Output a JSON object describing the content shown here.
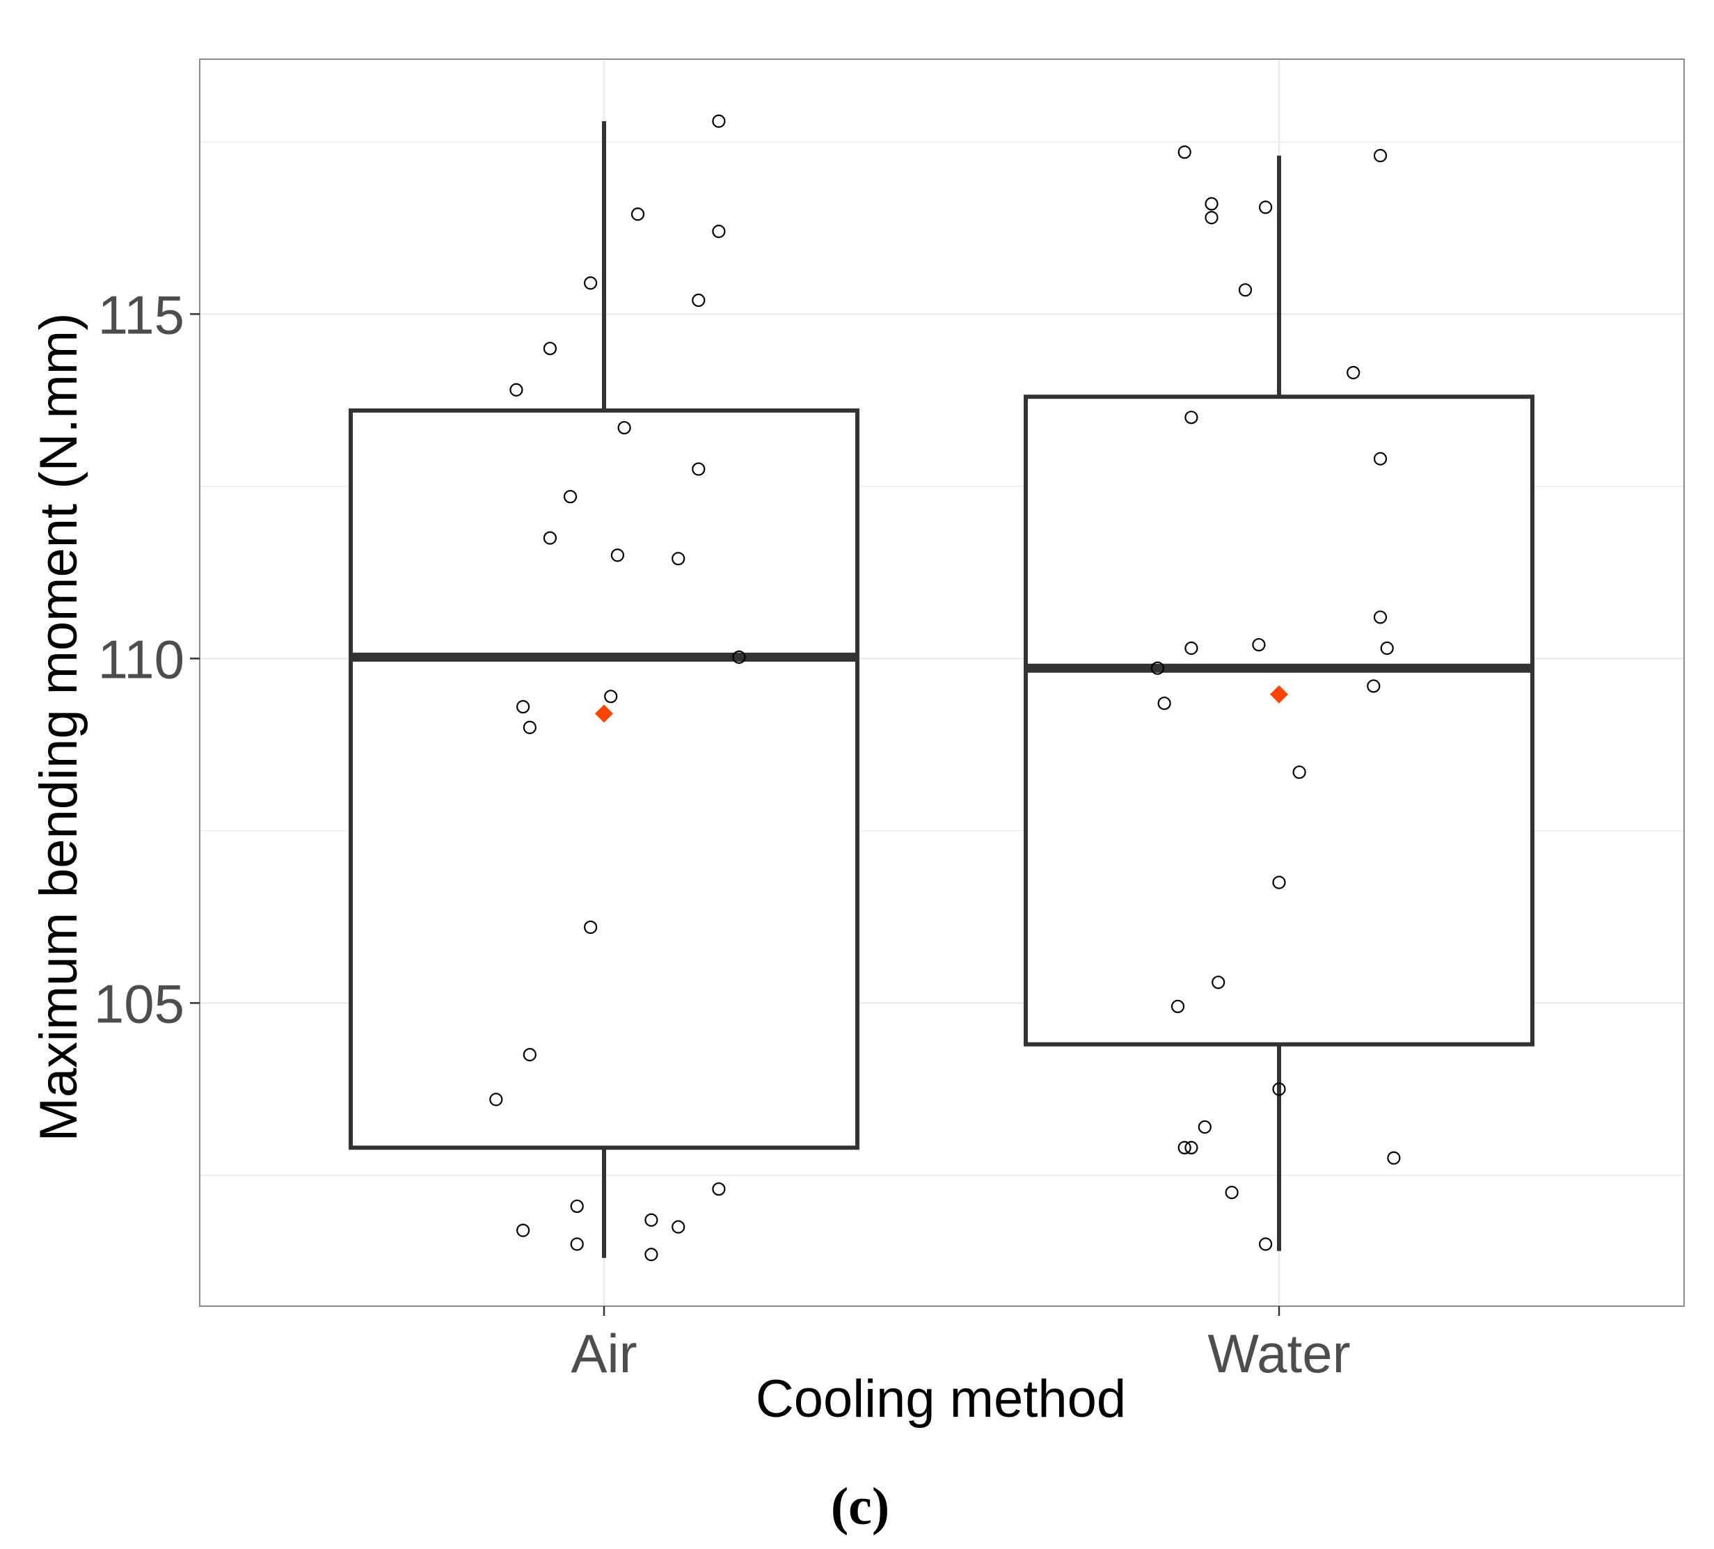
{
  "chart_data": {
    "type": "box",
    "xlabel": "Cooling method",
    "ylabel": "Maximum bending moment (N.mm)",
    "categories": [
      "Air",
      "Water"
    ],
    "yticks": [
      105,
      110,
      115
    ],
    "ylim": [
      100.6,
      118.7
    ],
    "grid": true,
    "panel_label": "(c)",
    "boxes": [
      {
        "category": "Air",
        "whisker_low": 101.3,
        "q1": 102.9,
        "median": 110.02,
        "q3": 113.6,
        "whisker_high": 117.8,
        "mean": 109.2
      },
      {
        "category": "Water",
        "whisker_low": 101.4,
        "q1": 104.4,
        "median": 109.86,
        "q3": 113.8,
        "whisker_high": 117.3,
        "mean": 109.48
      }
    ],
    "points": [
      {
        "category": "Air",
        "x_offset": 0.17,
        "y": 117.8
      },
      {
        "category": "Air",
        "x_offset": 0.05,
        "y": 116.45
      },
      {
        "category": "Air",
        "x_offset": 0.17,
        "y": 116.2
      },
      {
        "category": "Air",
        "x_offset": -0.02,
        "y": 115.45
      },
      {
        "category": "Air",
        "x_offset": 0.14,
        "y": 115.2
      },
      {
        "category": "Air",
        "x_offset": -0.08,
        "y": 114.5
      },
      {
        "category": "Air",
        "x_offset": -0.13,
        "y": 113.9
      },
      {
        "category": "Air",
        "x_offset": 0.03,
        "y": 113.35
      },
      {
        "category": "Air",
        "x_offset": 0.14,
        "y": 112.75
      },
      {
        "category": "Air",
        "x_offset": -0.05,
        "y": 112.35
      },
      {
        "category": "Air",
        "x_offset": -0.08,
        "y": 111.75
      },
      {
        "category": "Air",
        "x_offset": 0.02,
        "y": 111.5
      },
      {
        "category": "Air",
        "x_offset": 0.11,
        "y": 111.45
      },
      {
        "category": "Air",
        "x_offset": 0.2,
        "y": 110.02
      },
      {
        "category": "Air",
        "x_offset": 0.01,
        "y": 109.45
      },
      {
        "category": "Air",
        "x_offset": -0.12,
        "y": 109.3
      },
      {
        "category": "Air",
        "x_offset": -0.11,
        "y": 109.0
      },
      {
        "category": "Air",
        "x_offset": -0.02,
        "y": 106.1
      },
      {
        "category": "Air",
        "x_offset": -0.11,
        "y": 104.25
      },
      {
        "category": "Air",
        "x_offset": -0.16,
        "y": 103.6
      },
      {
        "category": "Air",
        "x_offset": 0.17,
        "y": 102.3
      },
      {
        "category": "Air",
        "x_offset": -0.04,
        "y": 102.05
      },
      {
        "category": "Air",
        "x_offset": 0.07,
        "y": 101.85
      },
      {
        "category": "Air",
        "x_offset": 0.11,
        "y": 101.75
      },
      {
        "category": "Air",
        "x_offset": -0.12,
        "y": 101.7
      },
      {
        "category": "Air",
        "x_offset": -0.04,
        "y": 101.5
      },
      {
        "category": "Air",
        "x_offset": 0.07,
        "y": 101.35
      },
      {
        "category": "Water",
        "x_offset": -0.14,
        "y": 117.35
      },
      {
        "category": "Water",
        "x_offset": 0.15,
        "y": 117.3
      },
      {
        "category": "Water",
        "x_offset": -0.1,
        "y": 116.6
      },
      {
        "category": "Water",
        "x_offset": -0.02,
        "y": 116.55
      },
      {
        "category": "Water",
        "x_offset": -0.1,
        "y": 116.4
      },
      {
        "category": "Water",
        "x_offset": -0.05,
        "y": 115.35
      },
      {
        "category": "Water",
        "x_offset": 0.11,
        "y": 114.15
      },
      {
        "category": "Water",
        "x_offset": -0.13,
        "y": 113.5
      },
      {
        "category": "Water",
        "x_offset": 0.15,
        "y": 112.9
      },
      {
        "category": "Water",
        "x_offset": 0.15,
        "y": 110.6
      },
      {
        "category": "Water",
        "x_offset": -0.03,
        "y": 110.2
      },
      {
        "category": "Water",
        "x_offset": -0.13,
        "y": 110.15
      },
      {
        "category": "Water",
        "x_offset": 0.16,
        "y": 110.15
      },
      {
        "category": "Water",
        "x_offset": -0.18,
        "y": 109.86
      },
      {
        "category": "Water",
        "x_offset": 0.14,
        "y": 109.6
      },
      {
        "category": "Water",
        "x_offset": -0.17,
        "y": 109.35
      },
      {
        "category": "Water",
        "x_offset": 0.03,
        "y": 108.35
      },
      {
        "category": "Water",
        "x_offset": 0.0,
        "y": 106.75
      },
      {
        "category": "Water",
        "x_offset": -0.09,
        "y": 105.3
      },
      {
        "category": "Water",
        "x_offset": -0.15,
        "y": 104.95
      },
      {
        "category": "Water",
        "x_offset": 0.0,
        "y": 103.75
      },
      {
        "category": "Water",
        "x_offset": -0.11,
        "y": 103.2
      },
      {
        "category": "Water",
        "x_offset": -0.14,
        "y": 102.9
      },
      {
        "category": "Water",
        "x_offset": -0.13,
        "y": 102.9
      },
      {
        "category": "Water",
        "x_offset": 0.17,
        "y": 102.75
      },
      {
        "category": "Water",
        "x_offset": -0.07,
        "y": 102.25
      },
      {
        "category": "Water",
        "x_offset": -0.02,
        "y": 101.5
      }
    ]
  }
}
